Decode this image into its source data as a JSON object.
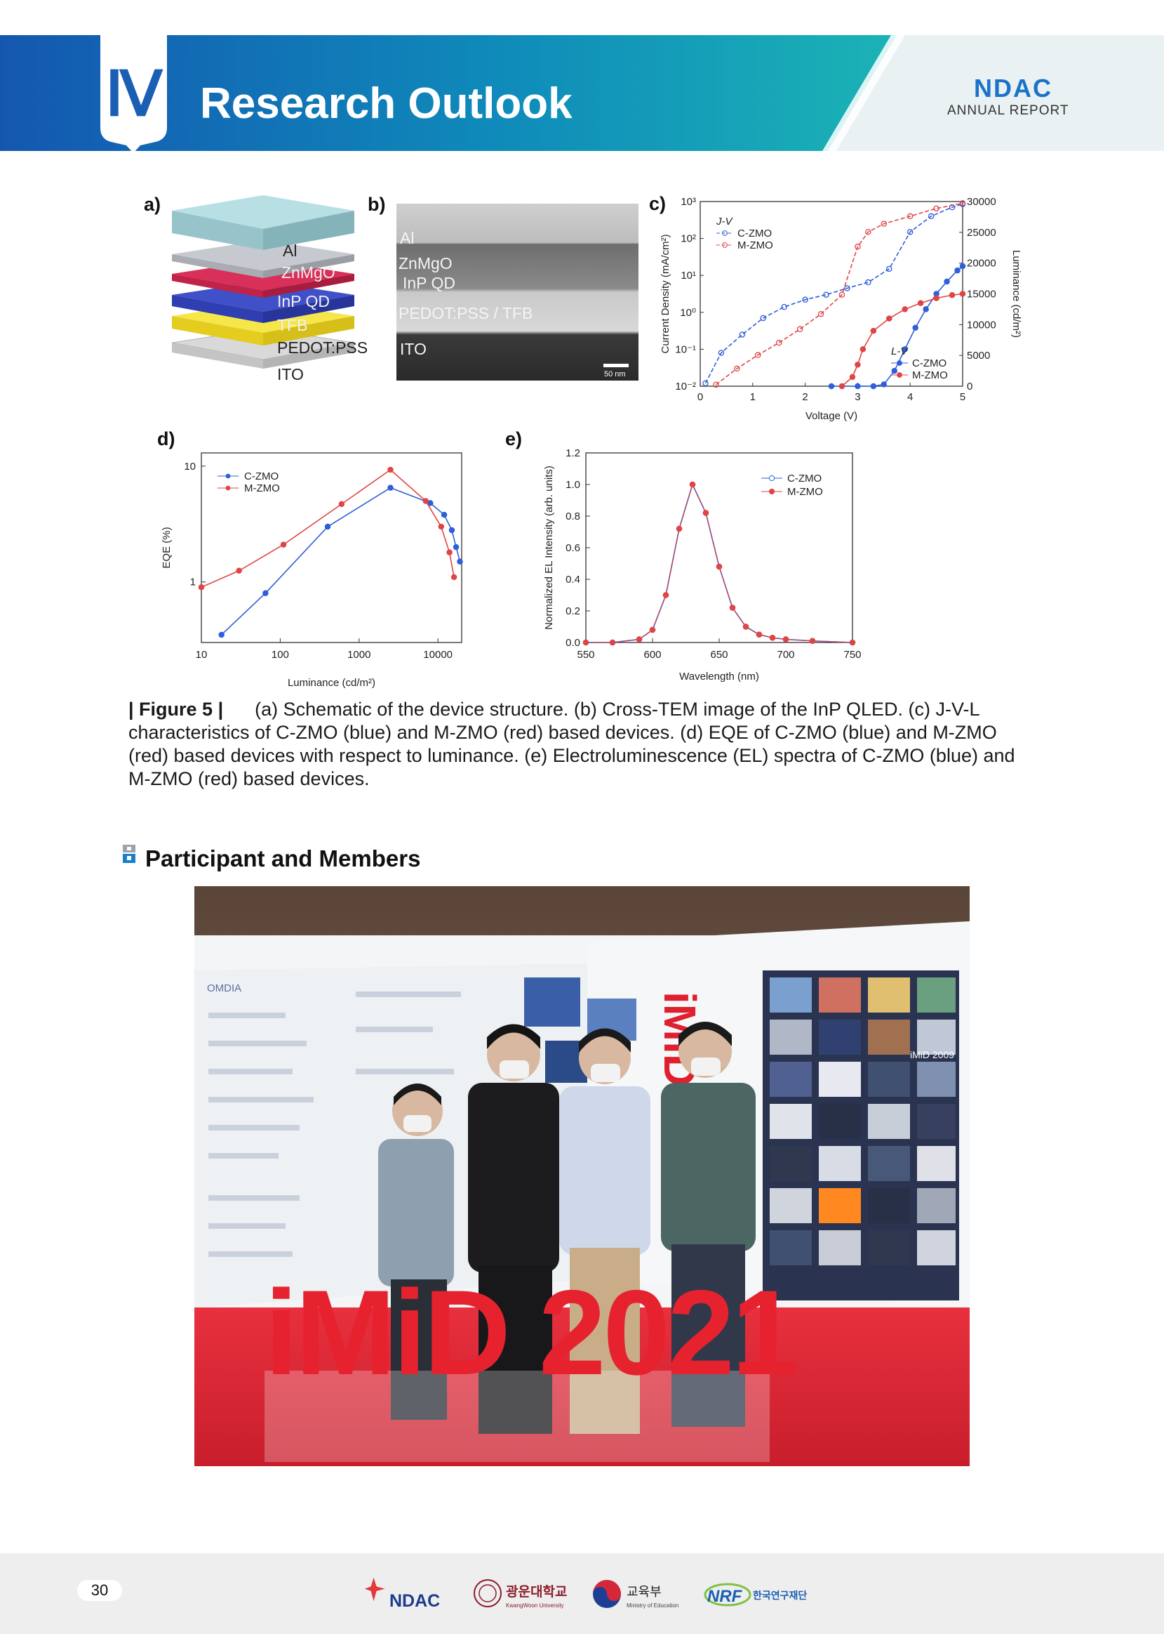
{
  "header": {
    "chapter_numeral": "Ⅳ",
    "chapter_title": "Research Outlook",
    "brand": "NDAC",
    "brand_sub": "ANNUAL REPORT"
  },
  "figure": {
    "panel_a": {
      "label": "a)",
      "layers": [
        "Al",
        "ZnMgO",
        "InP QD",
        "TFB",
        "PEDOT:PSS",
        "ITO"
      ]
    },
    "panel_b": {
      "label": "b)",
      "layers": [
        "Al",
        "ZnMgO",
        "InP QD",
        "PEDOT:PSS / TFB",
        "ITO"
      ],
      "scale_bar": "50 nm"
    },
    "panel_c_label": "c)",
    "panel_d_label": "d)",
    "panel_e_label": "e)"
  },
  "chart_data": [
    {
      "id": "c",
      "type": "line",
      "xlabel": "Voltage (V)",
      "ylabel_left": "Current Density (mA/cm²)",
      "ylabel_right": "Luminance (cd/m²)",
      "xlim": [
        0,
        5
      ],
      "xticks": [
        "0",
        "1",
        "2",
        "3",
        "4",
        "5"
      ],
      "ylim_left_log10": [
        -2,
        3
      ],
      "yticks_left": [
        "10⁻²",
        "10⁻¹",
        "10⁰",
        "10¹",
        "10²",
        "10³"
      ],
      "ylim_right": [
        0,
        30000
      ],
      "yticks_right": [
        "0",
        "5000",
        "10000",
        "15000",
        "20000",
        "25000",
        "30000"
      ],
      "legend_jv_title": "J-V",
      "legend_lv_title": "L-V",
      "series": [
        {
          "name": "C-ZMO",
          "group": "J-V",
          "color": "#2f5fd8",
          "marker": "open-circle",
          "x": [
            0.1,
            0.4,
            0.8,
            1.2,
            1.6,
            2.0,
            2.4,
            2.8,
            3.2,
            3.6,
            4.0,
            4.4,
            4.8,
            5.0
          ],
          "y": [
            0.012,
            0.08,
            0.25,
            0.7,
            1.4,
            2.2,
            3.0,
            4.5,
            6.5,
            15,
            150,
            400,
            700,
            850
          ]
        },
        {
          "name": "M-ZMO",
          "group": "J-V",
          "color": "#e04545",
          "marker": "open-circle",
          "x": [
            0.3,
            0.7,
            1.1,
            1.5,
            1.9,
            2.3,
            2.7,
            3.0,
            3.2,
            3.5,
            4.0,
            4.5,
            5.0
          ],
          "y": [
            0.011,
            0.03,
            0.07,
            0.15,
            0.35,
            0.9,
            3.0,
            60,
            150,
            250,
            400,
            650,
            900
          ]
        },
        {
          "name": "C-ZMO",
          "group": "L-V",
          "color": "#2f5fd8",
          "marker": "filled-circle",
          "x": [
            2.5,
            3.0,
            3.3,
            3.5,
            3.7,
            3.9,
            4.1,
            4.3,
            4.5,
            4.7,
            4.9,
            5.0
          ],
          "y": [
            0,
            0,
            0,
            300,
            2500,
            6000,
            9500,
            12500,
            15000,
            17000,
            18800,
            19500
          ]
        },
        {
          "name": "M-ZMO",
          "group": "L-V",
          "color": "#e04545",
          "marker": "filled-circle",
          "x": [
            2.7,
            2.9,
            3.0,
            3.1,
            3.3,
            3.6,
            3.9,
            4.2,
            4.5,
            4.8,
            5.0
          ],
          "y": [
            0,
            1500,
            3500,
            6000,
            9000,
            11000,
            12500,
            13500,
            14300,
            14800,
            15000
          ]
        }
      ]
    },
    {
      "id": "d",
      "type": "line",
      "xlabel": "Luminance (cd/m²)",
      "ylabel": "EQE (%)",
      "xscale": "log",
      "yscale": "log",
      "xlim": [
        10,
        20000
      ],
      "xticks": [
        "10",
        "100",
        "1000",
        "10000"
      ],
      "ylim": [
        0.3,
        13
      ],
      "yticks": [
        "1",
        "10"
      ],
      "series": [
        {
          "name": "C-ZMO",
          "color": "#2f5fd8",
          "x": [
            18,
            65,
            400,
            2500,
            8000,
            12000,
            15000,
            17000,
            19000
          ],
          "y": [
            0.35,
            0.8,
            3.0,
            6.5,
            4.8,
            3.8,
            2.8,
            2.0,
            1.5
          ]
        },
        {
          "name": "M-ZMO",
          "color": "#e04545",
          "x": [
            10,
            30,
            110,
            600,
            2500,
            7000,
            11000,
            14000,
            16000
          ],
          "y": [
            0.9,
            1.25,
            2.1,
            4.7,
            9.3,
            5.0,
            3.0,
            1.8,
            1.1
          ]
        }
      ]
    },
    {
      "id": "e",
      "type": "line",
      "xlabel": "Wavelength (nm)",
      "ylabel": "Normalized EL Intensity (arb. units)",
      "xlim": [
        550,
        750
      ],
      "xticks": [
        "550",
        "600",
        "650",
        "700",
        "750"
      ],
      "ylim": [
        0,
        1.2
      ],
      "yticks": [
        "0.0",
        "0.2",
        "0.4",
        "0.6",
        "0.8",
        "1.0",
        "1.2"
      ],
      "series": [
        {
          "name": "C-ZMO",
          "color": "#2f5fd8",
          "marker": "open-circle",
          "x": [
            550,
            570,
            590,
            600,
            610,
            620,
            630,
            640,
            650,
            660,
            670,
            680,
            690,
            700,
            720,
            750
          ],
          "y": [
            0.0,
            0.0,
            0.02,
            0.08,
            0.3,
            0.72,
            1.0,
            0.82,
            0.48,
            0.22,
            0.1,
            0.05,
            0.03,
            0.02,
            0.01,
            0.0
          ]
        },
        {
          "name": "M-ZMO",
          "color": "#e04545",
          "marker": "filled-circle",
          "x": [
            550,
            570,
            590,
            600,
            610,
            620,
            630,
            640,
            650,
            660,
            670,
            680,
            690,
            700,
            720,
            750
          ],
          "y": [
            0.0,
            0.0,
            0.02,
            0.08,
            0.3,
            0.72,
            1.0,
            0.82,
            0.48,
            0.22,
            0.1,
            0.05,
            0.03,
            0.02,
            0.01,
            0.0
          ]
        }
      ]
    }
  ],
  "caption": {
    "label": "| Figure 5 |",
    "text": "(a) Schematic of the device structure. (b) Cross-TEM image of the InP QLED. (c) J-V-L characteristics of C-ZMO (blue) and M-ZMO (red) based devices. (d) EQE of C-ZMO (blue) and M-ZMO (red) based devices with respect to luminance. (e) Electroluminescence (EL) spectra of C-ZMO (blue) and M-ZMO (red) based devices."
  },
  "section": {
    "title": "Participant and Members"
  },
  "photo": {
    "sign_text": "iMiD 2021",
    "booth_mark": "iMiD",
    "booth_year_tag": "iMiD 2009",
    "booth_left_label": "OMDIA"
  },
  "footer": {
    "page_number": "30",
    "logos": [
      "NDAC",
      "광운대학교",
      "KwangWoon University",
      "교육부",
      "Ministry of Education",
      "NRF",
      "한국연구재단"
    ]
  }
}
